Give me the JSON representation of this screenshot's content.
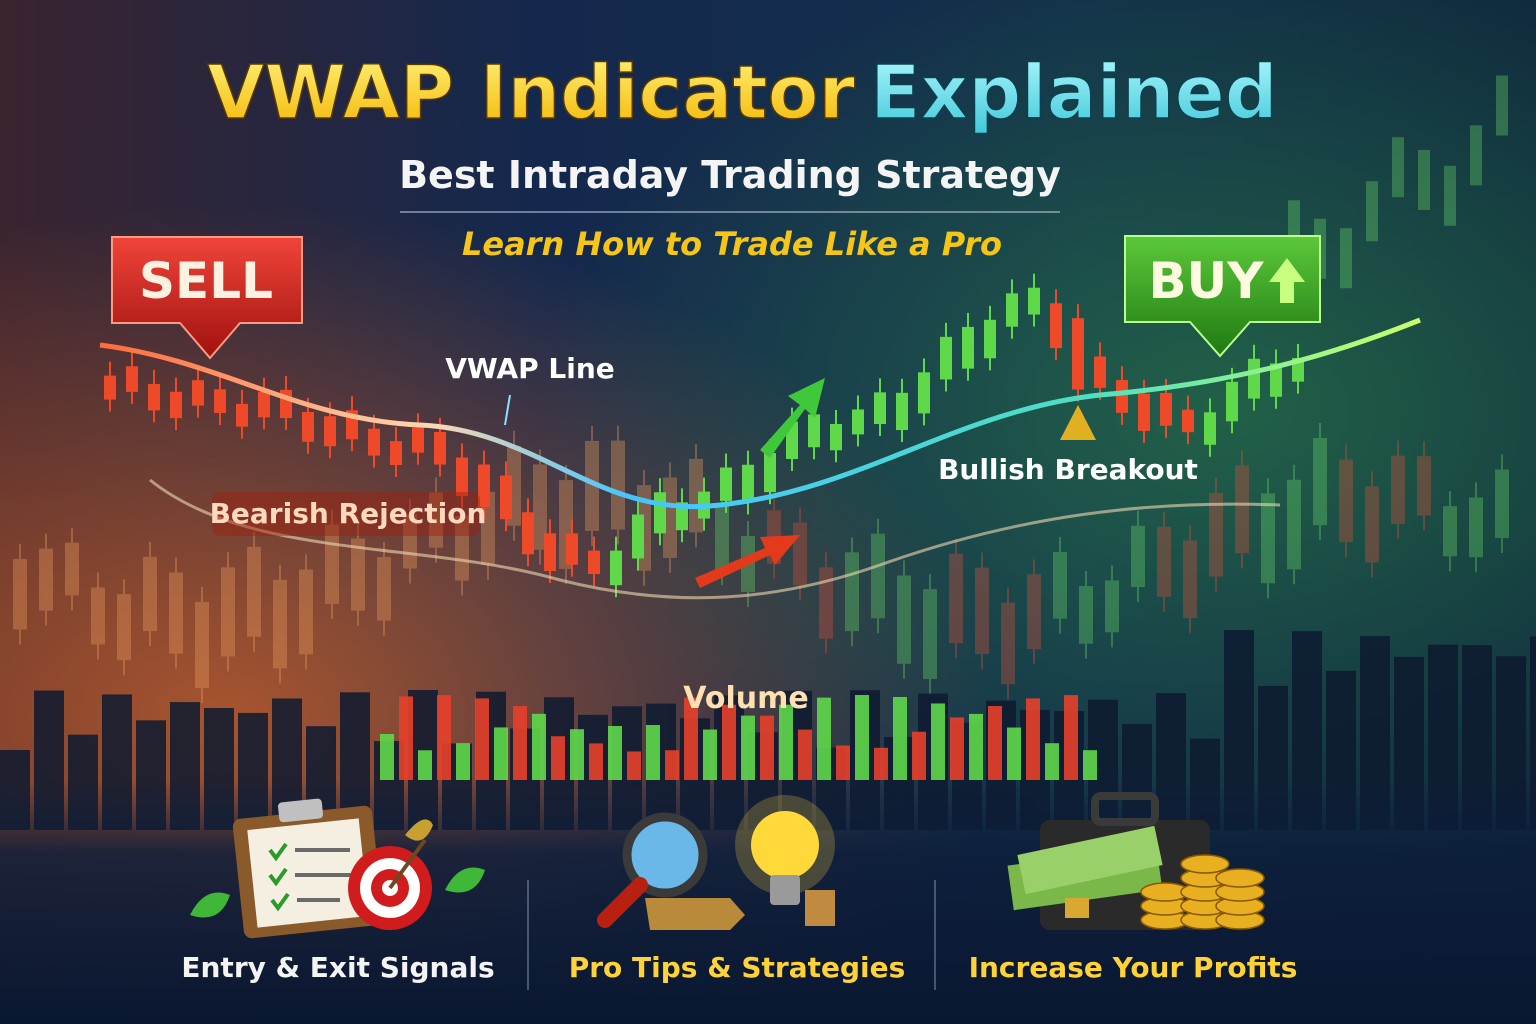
{
  "header": {
    "title_main": "VWAP Indicator",
    "title_accent": "Explained",
    "subtitle": "Best Intraday Trading Strategy",
    "tagline": "Learn How to Trade Like a Pro"
  },
  "signals": {
    "sell": "SELL",
    "buy": "BUY"
  },
  "annotations": {
    "vwap_line": "VWAP Line",
    "bearish": "Bearish Rejection",
    "bullish": "Bullish Breakout",
    "volume": "Volume"
  },
  "features": [
    "Entry & Exit Signals",
    "Pro Tips & Strategies",
    "Increase Your Profits"
  ]
}
